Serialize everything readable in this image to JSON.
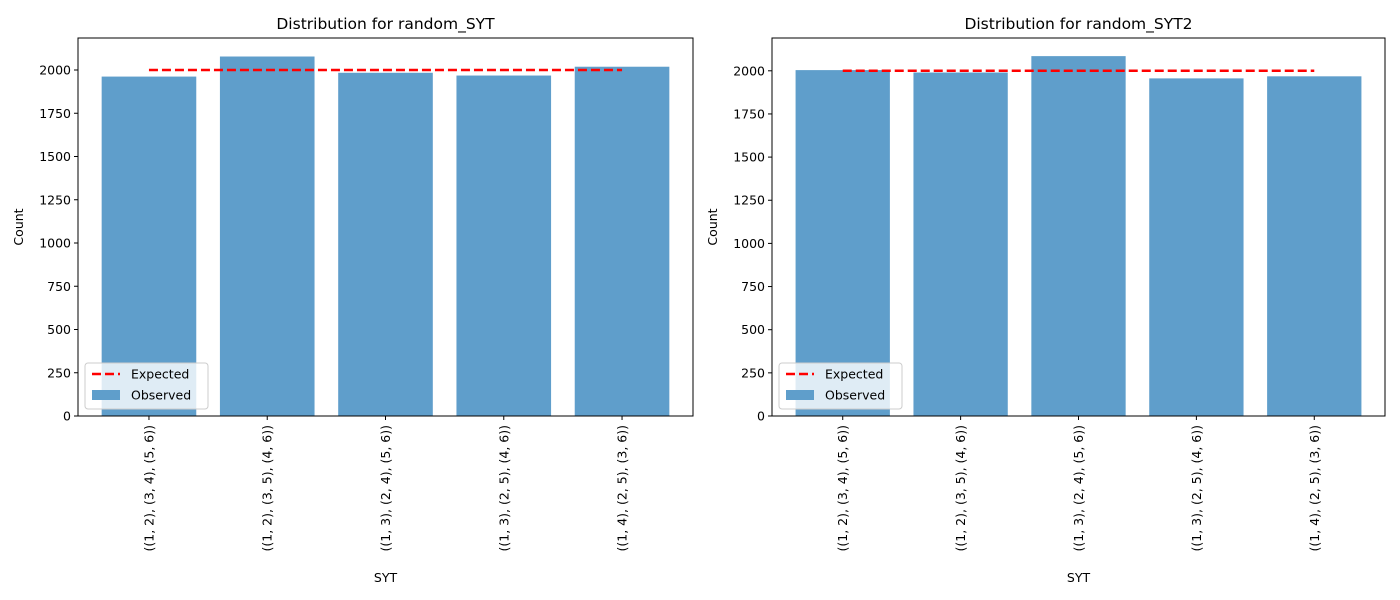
{
  "chart_data": [
    {
      "type": "bar",
      "title": "Distribution for random_SYT",
      "xlabel": "SYT",
      "ylabel": "Count",
      "categories": [
        "((1, 2), (3, 4), (5, 6))",
        "((1, 2), (3, 5), (4, 6))",
        "((1, 3), (2, 4), (5, 6))",
        "((1, 3), (2, 5), (4, 6))",
        "((1, 4), (2, 5), (3, 6))"
      ],
      "series": [
        {
          "name": "Observed",
          "type": "bar",
          "color": "#5f9ecb",
          "values": [
            1962,
            2078,
            1984,
            1968,
            2019
          ]
        },
        {
          "name": "Expected",
          "type": "line",
          "style": "dashed",
          "color": "#ff0000",
          "values": [
            2000,
            2000,
            2000,
            2000,
            2000
          ]
        }
      ],
      "ylim": [
        0,
        2185
      ],
      "yticks": [
        0,
        250,
        500,
        750,
        1000,
        1250,
        1500,
        1750,
        2000
      ],
      "legend_position": "lower-left",
      "grid": false
    },
    {
      "type": "bar",
      "title": "Distribution for random_SYT2",
      "xlabel": "SYT",
      "ylabel": "Count",
      "categories": [
        "((1, 2), (3, 4), (5, 6))",
        "((1, 2), (3, 5), (4, 6))",
        "((1, 3), (2, 4), (5, 6))",
        "((1, 3), (2, 5), (4, 6))",
        "((1, 4), (2, 5), (3, 6))"
      ],
      "series": [
        {
          "name": "Observed",
          "type": "bar",
          "color": "#5f9ecb",
          "values": [
            2004,
            1990,
            2085,
            1956,
            1968
          ]
        },
        {
          "name": "Expected",
          "type": "line",
          "style": "dashed",
          "color": "#ff0000",
          "values": [
            2000,
            2000,
            2000,
            2000,
            2000
          ]
        }
      ],
      "ylim": [
        0,
        2190
      ],
      "yticks": [
        0,
        250,
        500,
        750,
        1000,
        1250,
        1500,
        1750,
        2000
      ],
      "legend_position": "lower-left",
      "grid": false
    }
  ]
}
